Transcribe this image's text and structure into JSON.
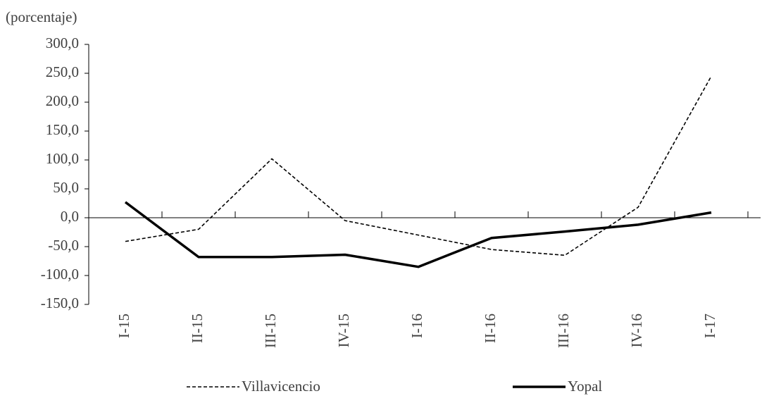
{
  "chart_data": {
    "type": "line",
    "axis_label": "(porcentaje)",
    "categories": [
      "I-15",
      "II-15",
      "III-15",
      "IV-15",
      "I-16",
      "II-16",
      "III-16",
      "IV-16",
      "I-17"
    ],
    "series": [
      {
        "name": "Villavicencio",
        "color": "#000000",
        "dash": true,
        "values": [
          -41,
          -20,
          102,
          -5,
          -30,
          -55,
          -65,
          18,
          245
        ]
      },
      {
        "name": "Yopal",
        "color": "#000000",
        "dash": false,
        "values": [
          27,
          -68,
          -68,
          -64,
          -85,
          -35,
          -24,
          -12,
          9
        ]
      }
    ],
    "ylim": [
      -150,
      300
    ],
    "yticks": [
      {
        "value": 300,
        "label": "300,0"
      },
      {
        "value": 250,
        "label": "250,0"
      },
      {
        "value": 200,
        "label": "200,0"
      },
      {
        "value": 150,
        "label": "150,0"
      },
      {
        "value": 100,
        "label": "100,0"
      },
      {
        "value": 50,
        "label": "50,0"
      },
      {
        "value": 0,
        "label": "0,0"
      },
      {
        "value": -50,
        "label": "-50,0"
      },
      {
        "value": -100,
        "label": "-100,0"
      },
      {
        "value": -150,
        "label": "-150,0"
      }
    ],
    "grid": false
  }
}
